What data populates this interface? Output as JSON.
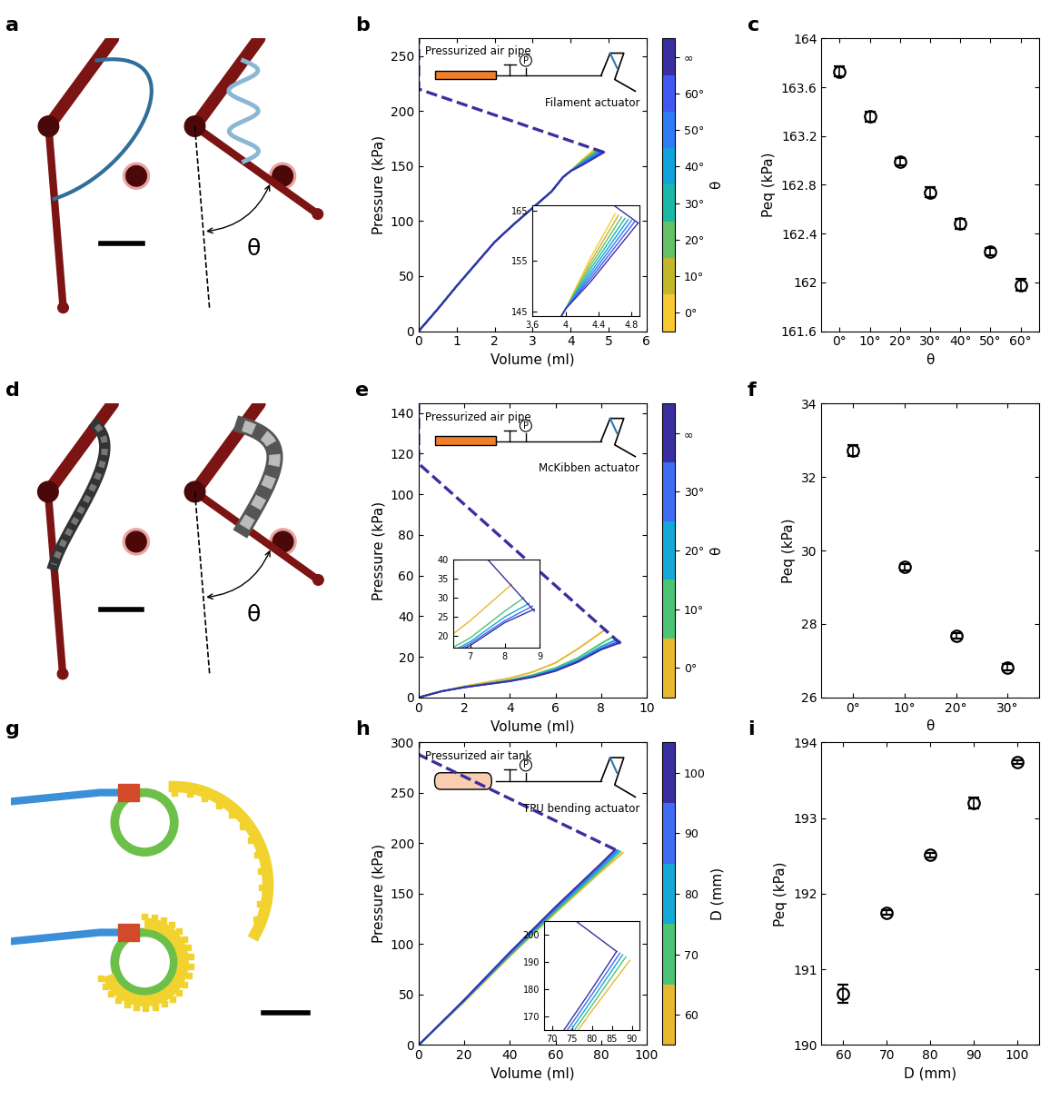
{
  "chart_data": [
    {
      "type": "line",
      "title": "b",
      "x_label": "Volume (ml)",
      "y_label": "Pressure (kPa)",
      "xlim": [
        0,
        6
      ],
      "xticks": [
        0,
        1,
        2,
        3,
        4,
        5,
        6
      ],
      "ylim": [
        0,
        266
      ],
      "yticks": [
        0,
        50,
        100,
        150,
        200,
        250
      ],
      "annotations": [
        "Pressurized air pipe",
        "P",
        "Filament actuator"
      ],
      "series": [
        {
          "name": "0°",
          "color": "#f8c932",
          "x": [
            0,
            0.5,
            1,
            1.5,
            2,
            2.5,
            3,
            3.5,
            3.8,
            4,
            4.3,
            4.6
          ],
          "values": [
            0,
            20,
            41,
            61,
            81,
            97,
            112,
            127,
            140,
            145.5,
            155.5,
            164.3
          ]
        },
        {
          "name": "10°",
          "color": "#c2b62a",
          "x": [
            0,
            0.5,
            1,
            1.5,
            2,
            2.5,
            3,
            3.5,
            3.8,
            4,
            4.3,
            4.64
          ],
          "values": [
            0,
            20,
            41,
            61,
            81,
            97,
            112,
            127,
            140,
            145.5,
            154.7,
            164.0
          ]
        },
        {
          "name": "20°",
          "color": "#64c168",
          "x": [
            0,
            0.5,
            1,
            1.5,
            2,
            2.5,
            3,
            3.5,
            3.8,
            4,
            4.3,
            4.68
          ],
          "values": [
            0,
            20,
            41,
            61,
            81,
            97,
            112,
            127,
            140,
            145.5,
            154.0,
            163.7
          ]
        },
        {
          "name": "30°",
          "color": "#1bb8a8",
          "x": [
            0,
            0.5,
            1,
            1.5,
            2,
            2.5,
            3,
            3.5,
            3.8,
            4,
            4.3,
            4.72
          ],
          "values": [
            0,
            20,
            41,
            61,
            81,
            97,
            112,
            127,
            140,
            145.5,
            153.3,
            163.4
          ]
        },
        {
          "name": "40°",
          "color": "#10a3dc",
          "x": [
            0,
            0.5,
            1,
            1.5,
            2,
            2.5,
            3,
            3.5,
            3.8,
            4,
            4.3,
            4.76
          ],
          "values": [
            0,
            20,
            41,
            61,
            81,
            97,
            112,
            127,
            140,
            145.5,
            152.6,
            163.2
          ]
        },
        {
          "name": "50°",
          "color": "#2f7cf5",
          "x": [
            0,
            0.5,
            1,
            1.5,
            2,
            2.5,
            3,
            3.5,
            3.8,
            4,
            4.3,
            4.8
          ],
          "values": [
            0,
            20,
            41,
            61,
            81,
            97,
            112,
            127,
            140,
            145.5,
            152.0,
            163.0
          ]
        },
        {
          "name": "60°",
          "color": "#4258f0",
          "x": [
            0,
            0.5,
            1,
            1.5,
            2,
            2.5,
            3,
            3.5,
            3.8,
            4,
            4.3,
            4.84
          ],
          "values": [
            0,
            20,
            41,
            61,
            81,
            97,
            112,
            127,
            140,
            145.5,
            151.4,
            162.8
          ]
        },
        {
          "name": "∞",
          "color": "#3a2fa0",
          "x": [
            0,
            0.5,
            1,
            1.5,
            2,
            2.5,
            3,
            3.5,
            3.8,
            4,
            4.3,
            4.88
          ],
          "values": [
            0,
            20,
            41,
            61,
            81,
            97,
            112,
            127,
            140,
            145.5,
            150.8,
            162.5
          ]
        },
        {
          "name": "∞",
          "color": "#3a2fa0",
          "line_style": "dashed",
          "x": [
            4.88,
            0,
            0
          ],
          "values": [
            162.5,
            220,
            266
          ]
        }
      ],
      "inset": {
        "xlim": [
          3.6,
          4.9
        ],
        "xticks": [
          3.6,
          4,
          4.4,
          4.8
        ],
        "ylim": [
          144,
          166
        ],
        "yticks": [
          145,
          155,
          165
        ]
      },
      "colorbar": {
        "label": "θ",
        "ticks": [
          "0°",
          "10°",
          "20°",
          "30°",
          "40°",
          "50°",
          "60°",
          "∞"
        ],
        "colors": [
          "#f8c932",
          "#c2b62a",
          "#64c168",
          "#1bb8a8",
          "#10a3dc",
          "#2f7cf5",
          "#4258f0",
          "#3a2fa0"
        ]
      }
    },
    {
      "type": "scatter",
      "title": "c",
      "x_label": "θ",
      "y_label": "Peq (kPa)",
      "marker": "circle",
      "categories": [
        "0°",
        "10°",
        "20°",
        "30°",
        "40°",
        "50°",
        "60°"
      ],
      "values": [
        163.73,
        163.36,
        162.99,
        162.74,
        162.48,
        162.25,
        161.98
      ],
      "errors": [
        0.04,
        0.04,
        0.03,
        0.04,
        0.04,
        0.03,
        0.05
      ],
      "ylim": [
        161.6,
        164
      ],
      "yticks": [
        161.6,
        162,
        162.4,
        162.8,
        163.2,
        163.6,
        164
      ]
    },
    {
      "type": "line",
      "title": "e",
      "x_label": "Volume (ml)",
      "y_label": "Pressure (kPa)",
      "xlim": [
        0,
        10
      ],
      "xticks": [
        0,
        2,
        4,
        6,
        8,
        10
      ],
      "ylim": [
        0,
        144.5
      ],
      "yticks": [
        0,
        20,
        40,
        60,
        80,
        100,
        120,
        140
      ],
      "annotations": [
        "Pressurized air pipe",
        "P",
        "McKibben actuator"
      ],
      "series": [
        {
          "name": "0°",
          "color": "#e8b830",
          "x": [
            0,
            1,
            2,
            3,
            4,
            5,
            6,
            7,
            8.2
          ],
          "values": [
            0,
            3,
            5.5,
            7.5,
            9.5,
            12.5,
            17,
            24,
            33.5
          ]
        },
        {
          "name": "10°",
          "color": "#4cc476",
          "x": [
            0,
            1,
            2,
            3,
            4,
            5,
            6,
            7,
            8,
            8.55
          ],
          "values": [
            0,
            3,
            5,
            6.8,
            8.5,
            11,
            14.5,
            19.5,
            26.5,
            30
          ]
        },
        {
          "name": "20°",
          "color": "#14a9d6",
          "x": [
            0,
            1,
            2,
            3,
            4,
            5,
            6,
            7,
            8,
            8.7
          ],
          "values": [
            0,
            3,
            5,
            6.6,
            8.2,
            10.5,
            13.8,
            18.5,
            25,
            28.5
          ]
        },
        {
          "name": "30°",
          "color": "#3f6cf3",
          "x": [
            0,
            1,
            2,
            3,
            4,
            5,
            6,
            7,
            8,
            8.8
          ],
          "values": [
            0,
            3,
            5,
            6.5,
            8,
            10.2,
            13.3,
            18,
            24,
            27.8
          ]
        },
        {
          "name": "∞",
          "color": "#3a2fa0",
          "x": [
            0,
            1,
            2,
            3,
            4,
            5,
            6,
            7,
            8,
            8.85
          ],
          "values": [
            0,
            3,
            5,
            6.5,
            8,
            10,
            13,
            17.5,
            23.5,
            27
          ]
        },
        {
          "name": "∞",
          "color": "#3a2fa0",
          "line_style": "dashed",
          "x": [
            8.85,
            0,
            0
          ],
          "values": [
            26.5,
            115,
            144
          ]
        }
      ],
      "inset": {
        "xlim": [
          6.5,
          9
        ],
        "xticks": [
          7,
          8,
          9
        ],
        "ylim": [
          17,
          40
        ],
        "yticks": [
          20,
          25,
          30,
          35,
          40
        ]
      },
      "colorbar": {
        "label": "θ",
        "ticks": [
          "0°",
          "10°",
          "20°",
          "30°",
          "∞"
        ],
        "colors": [
          "#e8b830",
          "#4cc476",
          "#14a9d6",
          "#3f6cf3",
          "#3a2fa0"
        ]
      }
    },
    {
      "type": "scatter",
      "title": "f",
      "x_label": "θ",
      "y_label": "Peq (kPa)",
      "marker": "circle",
      "categories": [
        "0°",
        "10°",
        "20°",
        "30°"
      ],
      "values": [
        32.72,
        29.55,
        27.68,
        26.82
      ],
      "errors": [
        0.15,
        0.08,
        0.08,
        0.08
      ],
      "ylim": [
        26,
        34
      ],
      "yticks": [
        26,
        28,
        30,
        32,
        34
      ]
    },
    {
      "type": "line",
      "title": "h",
      "x_label": "Volume (ml)",
      "y_label": "Pressure (kPa)",
      "xlim": [
        0,
        100
      ],
      "xticks": [
        0,
        20,
        40,
        60,
        80,
        100
      ],
      "ylim": [
        0,
        300
      ],
      "yticks": [
        0,
        50,
        100,
        150,
        200,
        250,
        300
      ],
      "annotations": [
        "Pressurized air tank",
        "P",
        "TPU bending actuator"
      ],
      "series": [
        {
          "name": "60",
          "color": "#e8b830",
          "x": [
            0,
            20,
            40,
            60,
            80,
            89.5
          ],
          "values": [
            0,
            43,
            88,
            131,
            172,
            190.5
          ]
        },
        {
          "name": "70",
          "color": "#4cc476",
          "x": [
            0,
            20,
            40,
            60,
            80,
            88.5
          ],
          "values": [
            0,
            43.5,
            89,
            132.5,
            174,
            191.8
          ]
        },
        {
          "name": "80",
          "color": "#14a9d6",
          "x": [
            0,
            20,
            40,
            60,
            80,
            87.7
          ],
          "values": [
            0,
            44,
            90,
            134,
            176,
            192.6
          ]
        },
        {
          "name": "90",
          "color": "#3f6cf3",
          "x": [
            0,
            20,
            40,
            60,
            80,
            87
          ],
          "values": [
            0,
            44.5,
            91,
            135.5,
            178,
            193.2
          ]
        },
        {
          "name": "100",
          "color": "#3a2fa0",
          "x": [
            0,
            20,
            40,
            60,
            80,
            86.2
          ],
          "values": [
            0,
            45,
            92,
            137,
            180,
            193.8
          ]
        },
        {
          "name": "100",
          "color": "#3a2fa0",
          "line_style": "dashed",
          "x": [
            86.2,
            0,
            0
          ],
          "values": [
            193.8,
            288,
            300
          ]
        }
      ],
      "inset": {
        "xlim": [
          68,
          92
        ],
        "xticks": [
          70,
          75,
          80,
          85,
          90
        ],
        "ylim": [
          165,
          205
        ],
        "yticks": [
          170,
          180,
          190,
          200
        ]
      },
      "colorbar": {
        "label": "D (mm)",
        "ticks": [
          60,
          70,
          80,
          90,
          100
        ],
        "colors": [
          "#e8b830",
          "#4cc476",
          "#14a9d6",
          "#3f6cf3",
          "#3a2fa0"
        ]
      }
    },
    {
      "type": "scatter",
      "title": "i",
      "x_label": "D (mm)",
      "y_label": "Peq (kPa)",
      "marker": "circle",
      "x": [
        60,
        70,
        80,
        90,
        100
      ],
      "values": [
        190.68,
        191.75,
        192.51,
        193.2,
        193.74
      ],
      "errors": [
        0.12,
        0.03,
        0.03,
        0.07,
        0.02
      ],
      "xlim": [
        55,
        105
      ],
      "xticks": [
        60,
        70,
        80,
        90,
        100
      ],
      "ylim": [
        190,
        194
      ],
      "yticks": [
        190,
        191,
        192,
        193,
        194
      ]
    }
  ],
  "images": [
    {
      "panel": "a",
      "labels": [
        "θ"
      ]
    },
    {
      "panel": "d",
      "labels": [
        "θ"
      ]
    },
    {
      "panel": "g",
      "labels": []
    }
  ]
}
